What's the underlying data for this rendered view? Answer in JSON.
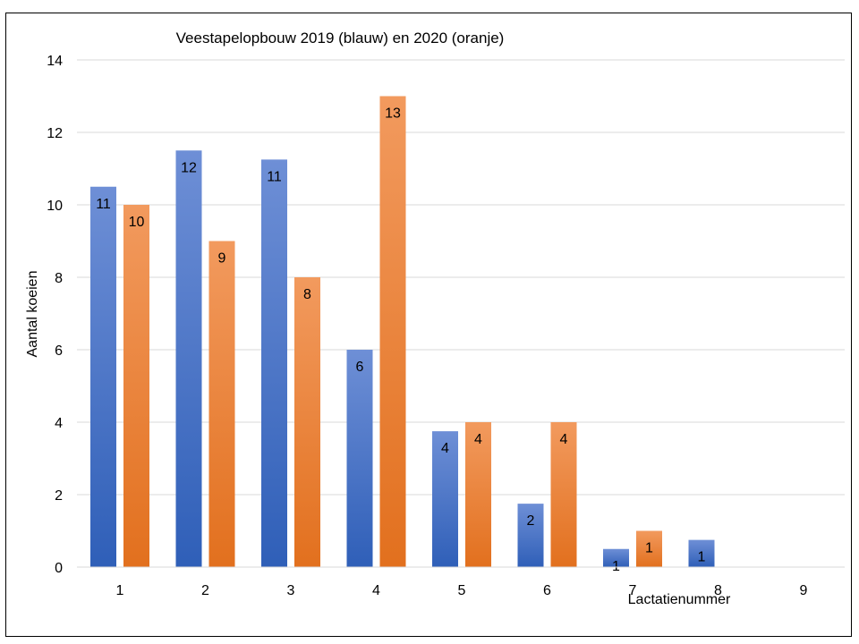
{
  "chart_data": {
    "type": "bar",
    "title": "Veestapelopbouw 2019 (blauw) en 2020 (oranje)",
    "xlabel": "Lactatienummer",
    "ylabel": "Aantal koeien",
    "categories": [
      "1",
      "2",
      "3",
      "4",
      "5",
      "6",
      "7",
      "8",
      "9"
    ],
    "series": [
      {
        "color": "#4472C4",
        "values": [
          10.5,
          11.5,
          11.25,
          6,
          3.75,
          1.75,
          0.5,
          0.75,
          0
        ],
        "labels": [
          "11",
          "12",
          "11",
          "6",
          "4",
          "2",
          "1",
          "1",
          ""
        ]
      },
      {
        "color": "#ED7D31",
        "values": [
          10,
          9,
          8,
          13,
          4,
          4,
          1,
          0,
          0
        ],
        "labels": [
          "10",
          "9",
          "8",
          "13",
          "4",
          "4",
          "1",
          "",
          ""
        ]
      }
    ],
    "ylim": [
      0,
      14
    ],
    "yticks": [
      0,
      2,
      4,
      6,
      8,
      10,
      12,
      14
    ],
    "grid": true,
    "legend": "none"
  }
}
